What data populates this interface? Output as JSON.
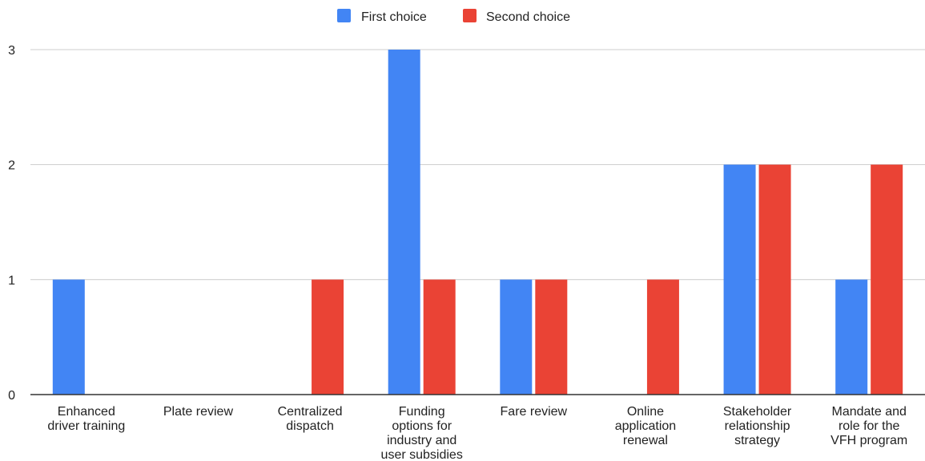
{
  "chart_data": {
    "type": "bar",
    "title": "",
    "xlabel": "",
    "ylabel": "",
    "categories": [
      [
        "Enhanced",
        "driver training"
      ],
      [
        "Plate review"
      ],
      [
        "Centralized",
        "dispatch"
      ],
      [
        "Funding",
        "options for",
        "industry and",
        "user subsidies"
      ],
      [
        "Fare review"
      ],
      [
        "Online",
        "application",
        "renewal"
      ],
      [
        "Stakeholder",
        "relationship",
        "strategy"
      ],
      [
        "Mandate and",
        "role for the",
        "VFH program"
      ]
    ],
    "series": [
      {
        "name": "First choice",
        "color": "#4285f4",
        "values": [
          1,
          0,
          0,
          3,
          1,
          0,
          2,
          1
        ]
      },
      {
        "name": "Second choice",
        "color": "#ea4335",
        "values": [
          0,
          0,
          1,
          1,
          1,
          1,
          2,
          2
        ]
      }
    ],
    "ylim": [
      0,
      3
    ],
    "yticks": [
      0,
      1,
      2,
      3
    ],
    "grid": true,
    "legend_position": "top-center"
  }
}
